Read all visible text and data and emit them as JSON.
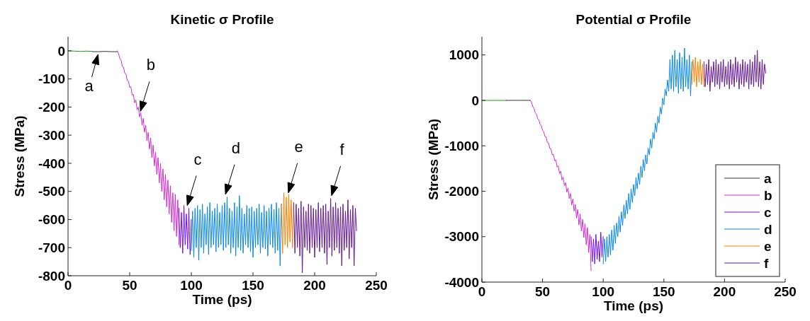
{
  "chart_data": [
    {
      "type": "line",
      "title": "Kinetic σ Profile",
      "xlabel": "Time (ps)",
      "ylabel": "Stress (MPa)",
      "xlim": [
        0,
        250
      ],
      "xticks": [
        0,
        50,
        100,
        150,
        200,
        250
      ],
      "ylim": [
        -800,
        50
      ],
      "yticks": [
        -800,
        -700,
        -600,
        -500,
        -400,
        -300,
        -200,
        -100,
        0
      ],
      "grid": false,
      "legend": false,
      "line_style": "solid",
      "marker": "none",
      "annotations": [
        {
          "text": "a",
          "x": 25,
          "y": -3
        },
        {
          "text": "b",
          "x": 58,
          "y": -225
        },
        {
          "text": "c",
          "x": 96,
          "y": -560
        },
        {
          "text": "d",
          "x": 127,
          "y": -520
        },
        {
          "text": "e",
          "x": 178,
          "y": -515
        },
        {
          "text": "f",
          "x": 213,
          "y": -525
        }
      ],
      "series": [
        {
          "color": "#1a9a1a",
          "x": [
            0,
            5,
            10,
            15,
            20
          ],
          "values": [
            0,
            -1,
            -2,
            -1,
            -2
          ]
        },
        {
          "color": "#333333",
          "x": [
            20,
            25,
            30,
            35,
            40
          ],
          "values": [
            -3,
            -3,
            -2,
            -3,
            -3
          ]
        },
        {
          "color": "#d22cd2",
          "x": [
            40,
            41,
            42,
            43,
            44,
            45,
            46,
            47,
            48,
            49,
            50,
            51,
            52,
            53,
            54,
            55,
            56,
            57,
            58,
            59,
            60,
            61,
            62,
            63,
            64,
            65,
            66,
            67,
            68,
            69,
            70,
            71,
            72,
            73,
            74,
            75,
            76,
            77,
            78,
            79,
            80,
            81,
            82,
            83,
            84,
            85,
            86,
            87,
            88,
            89,
            90
          ],
          "values": [
            0,
            -10,
            -28,
            -32,
            -55,
            -58,
            -80,
            -82,
            -105,
            -108,
            -130,
            -128,
            -158,
            -155,
            -185,
            -175,
            -210,
            -200,
            -235,
            -220,
            -265,
            -240,
            -290,
            -265,
            -320,
            -290,
            -350,
            -310,
            -380,
            -335,
            -410,
            -360,
            -440,
            -380,
            -470,
            -400,
            -500,
            -420,
            -530,
            -440,
            -555,
            -460,
            -580,
            -480,
            -610,
            -505,
            -640,
            -510,
            -660,
            -530,
            -690
          ]
        },
        {
          "color": "#7010f0",
          "x": [
            90,
            91,
            92,
            93,
            94,
            95,
            96,
            97,
            98,
            99,
            100
          ],
          "values": [
            -560,
            -700,
            -575,
            -720,
            -550,
            -690,
            -580,
            -705,
            -560,
            -725,
            -600
          ]
        },
        {
          "color": "#0a88e8",
          "x": [
            100,
            101,
            102,
            103,
            104,
            105,
            106,
            107,
            108,
            109,
            110,
            111,
            112,
            113,
            114,
            115,
            116,
            117,
            118,
            119,
            120,
            121,
            122,
            123,
            124,
            125,
            126,
            127,
            128,
            129,
            130,
            131,
            132,
            133,
            134,
            135,
            136,
            137,
            138,
            139,
            140,
            141,
            142,
            143,
            144,
            145,
            146,
            147,
            148,
            149,
            150,
            151,
            152,
            153,
            154,
            155,
            156,
            157,
            158,
            159,
            160,
            161,
            162,
            163,
            164,
            165,
            166,
            167,
            168,
            169,
            170,
            171,
            172,
            173
          ],
          "values": [
            -710,
            -570,
            -735,
            -560,
            -700,
            -550,
            -745,
            -565,
            -700,
            -545,
            -720,
            -580,
            -690,
            -555,
            -725,
            -540,
            -700,
            -570,
            -690,
            -560,
            -715,
            -545,
            -700,
            -575,
            -690,
            -550,
            -710,
            -540,
            -700,
            -520,
            -690,
            -560,
            -720,
            -570,
            -700,
            -540,
            -730,
            -555,
            -700,
            -515,
            -710,
            -560,
            -720,
            -580,
            -690,
            -550,
            -700,
            -560,
            -715,
            -555,
            -735,
            -570,
            -700,
            -560,
            -690,
            -545,
            -720,
            -575,
            -700,
            -550,
            -705,
            -570,
            -730,
            -560,
            -690,
            -545,
            -700,
            -565,
            -720,
            -540,
            -710,
            -560,
            -765,
            -545
          ]
        },
        {
          "color": "#ff8000",
          "x": [
            173,
            174,
            175,
            176,
            177,
            178,
            179,
            180,
            181,
            182,
            183
          ],
          "values": [
            -545,
            -720,
            -505,
            -690,
            -520,
            -700,
            -510,
            -680,
            -530,
            -700,
            -540
          ]
        },
        {
          "color": "#641a96",
          "x": [
            183,
            184,
            185,
            186,
            187,
            188,
            189,
            190,
            191,
            192,
            193,
            194,
            195,
            196,
            197,
            198,
            199,
            200,
            201,
            202,
            203,
            204,
            205,
            206,
            207,
            208,
            209,
            210,
            211,
            212,
            213,
            214,
            215,
            216,
            217,
            218,
            219,
            220,
            221,
            222,
            223,
            224,
            225,
            226,
            227,
            228,
            229,
            230,
            231,
            232,
            233,
            234
          ],
          "values": [
            -540,
            -720,
            -545,
            -700,
            -560,
            -730,
            -535,
            -790,
            -555,
            -700,
            -570,
            -710,
            -545,
            -720,
            -550,
            -700,
            -560,
            -735,
            -565,
            -700,
            -540,
            -715,
            -560,
            -700,
            -550,
            -720,
            -545,
            -760,
            -570,
            -700,
            -525,
            -730,
            -555,
            -710,
            -540,
            -700,
            -560,
            -720,
            -555,
            -765,
            -545,
            -710,
            -570,
            -700,
            -530,
            -740,
            -565,
            -700,
            -550,
            -765,
            -560,
            -640
          ]
        }
      ]
    },
    {
      "type": "line",
      "title": "Potential σ Profile",
      "xlabel": "Time (ps)",
      "ylabel": "Stress (MPa)",
      "xlim": [
        0,
        250
      ],
      "xticks": [
        0,
        50,
        100,
        150,
        200,
        250
      ],
      "ylim": [
        -4000,
        1400
      ],
      "yticks": [
        -4000,
        -3000,
        -2000,
        -1000,
        0,
        1000
      ],
      "grid": false,
      "legend": "bottom right",
      "line_style": "solid",
      "marker": "none",
      "series": [
        {
          "color": "#1a9a1a",
          "x": [
            0,
            5,
            10,
            15,
            20
          ],
          "values": [
            0,
            0,
            0,
            0,
            0
          ]
        },
        {
          "name": "a",
          "color": "#333333",
          "x": [
            20,
            30,
            40
          ],
          "values": [
            0,
            0,
            0
          ]
        },
        {
          "name": "b",
          "color": "#d22cd2",
          "x": [
            40,
            41,
            42,
            43,
            44,
            45,
            46,
            47,
            48,
            49,
            50,
            51,
            52,
            53,
            54,
            55,
            56,
            57,
            58,
            59,
            60,
            61,
            62,
            63,
            64,
            65,
            66,
            67,
            68,
            69,
            70,
            71,
            72,
            73,
            74,
            75,
            76,
            77,
            78,
            79,
            80,
            81,
            82,
            83,
            84,
            85,
            86,
            87,
            88,
            89,
            90
          ],
          "values": [
            0,
            -50,
            -140,
            -180,
            -270,
            -310,
            -400,
            -430,
            -530,
            -560,
            -660,
            -690,
            -800,
            -810,
            -930,
            -940,
            -1060,
            -1070,
            -1200,
            -1190,
            -1330,
            -1310,
            -1470,
            -1440,
            -1610,
            -1560,
            -1750,
            -1690,
            -1880,
            -1810,
            -2020,
            -1930,
            -2160,
            -2050,
            -2300,
            -2170,
            -2440,
            -2290,
            -2590,
            -2400,
            -2740,
            -2500,
            -2880,
            -2620,
            -3020,
            -2720,
            -3180,
            -2800,
            -3350,
            -2950,
            -3750
          ]
        },
        {
          "name": "c",
          "color": "#7010f0",
          "x": [
            90,
            91,
            92,
            93,
            94,
            95,
            96,
            97,
            98,
            99,
            100
          ],
          "values": [
            -3000,
            -3550,
            -3050,
            -3600,
            -2950,
            -3500,
            -3100,
            -3550,
            -2900,
            -3450,
            -3000
          ]
        },
        {
          "name": "d",
          "color": "#0a88e8",
          "x": [
            100,
            101,
            102,
            103,
            104,
            105,
            106,
            107,
            108,
            109,
            110,
            111,
            112,
            113,
            114,
            115,
            116,
            117,
            118,
            119,
            120,
            121,
            122,
            123,
            124,
            125,
            126,
            127,
            128,
            129,
            130,
            131,
            132,
            133,
            134,
            135,
            136,
            137,
            138,
            139,
            140,
            141,
            142,
            143,
            144,
            145,
            146,
            147,
            148,
            149,
            150,
            151,
            152,
            153,
            154,
            155,
            156,
            157,
            158,
            159,
            160,
            161,
            162,
            163,
            164,
            165,
            166,
            167,
            168,
            169,
            170,
            171,
            172,
            173
          ],
          "values": [
            -3600,
            -3050,
            -3550,
            -3000,
            -3450,
            -2950,
            -3400,
            -2850,
            -3300,
            -2750,
            -3150,
            -2700,
            -3000,
            -2550,
            -2900,
            -2450,
            -2750,
            -2300,
            -2600,
            -2200,
            -2500,
            -2050,
            -2400,
            -1950,
            -2250,
            -1850,
            -2100,
            -1700,
            -1950,
            -1600,
            -1850,
            -1450,
            -1700,
            -1300,
            -1550,
            -1200,
            -1400,
            -1050,
            -1200,
            -850,
            -1050,
            -700,
            -850,
            -500,
            -700,
            -350,
            -500,
            -150,
            -300,
            50,
            -100,
            250,
            100,
            450,
            200,
            900,
            250,
            1000,
            200,
            1100,
            300,
            900,
            150,
            1050,
            250,
            950,
            200,
            1150,
            300,
            900,
            250,
            1000,
            100,
            850
          ]
        },
        {
          "name": "e",
          "color": "#ff8000",
          "x": [
            173,
            174,
            175,
            176,
            177,
            178,
            179,
            180,
            181,
            182,
            183
          ],
          "values": [
            350,
            900,
            400,
            950,
            300,
            850,
            400,
            900,
            350,
            800,
            300
          ]
        },
        {
          "name": "f",
          "color": "#641a96",
          "x": [
            183,
            184,
            185,
            186,
            187,
            188,
            189,
            190,
            191,
            192,
            193,
            194,
            195,
            196,
            197,
            198,
            199,
            200,
            201,
            202,
            203,
            204,
            205,
            206,
            207,
            208,
            209,
            210,
            211,
            212,
            213,
            214,
            215,
            216,
            217,
            218,
            219,
            220,
            221,
            222,
            223,
            224,
            225,
            226,
            227,
            228,
            229,
            230,
            231,
            232,
            233,
            234
          ],
          "values": [
            850,
            300,
            800,
            350,
            900,
            200,
            750,
            400,
            850,
            300,
            900,
            350,
            800,
            250,
            850,
            400,
            900,
            300,
            750,
            350,
            850,
            250,
            900,
            350,
            800,
            300,
            950,
            400,
            850,
            250,
            800,
            350,
            900,
            300,
            850,
            400,
            800,
            250,
            900,
            350,
            850,
            300,
            1000,
            400,
            1100,
            300,
            850,
            250,
            900,
            350,
            800,
            600
          ]
        }
      ]
    }
  ]
}
